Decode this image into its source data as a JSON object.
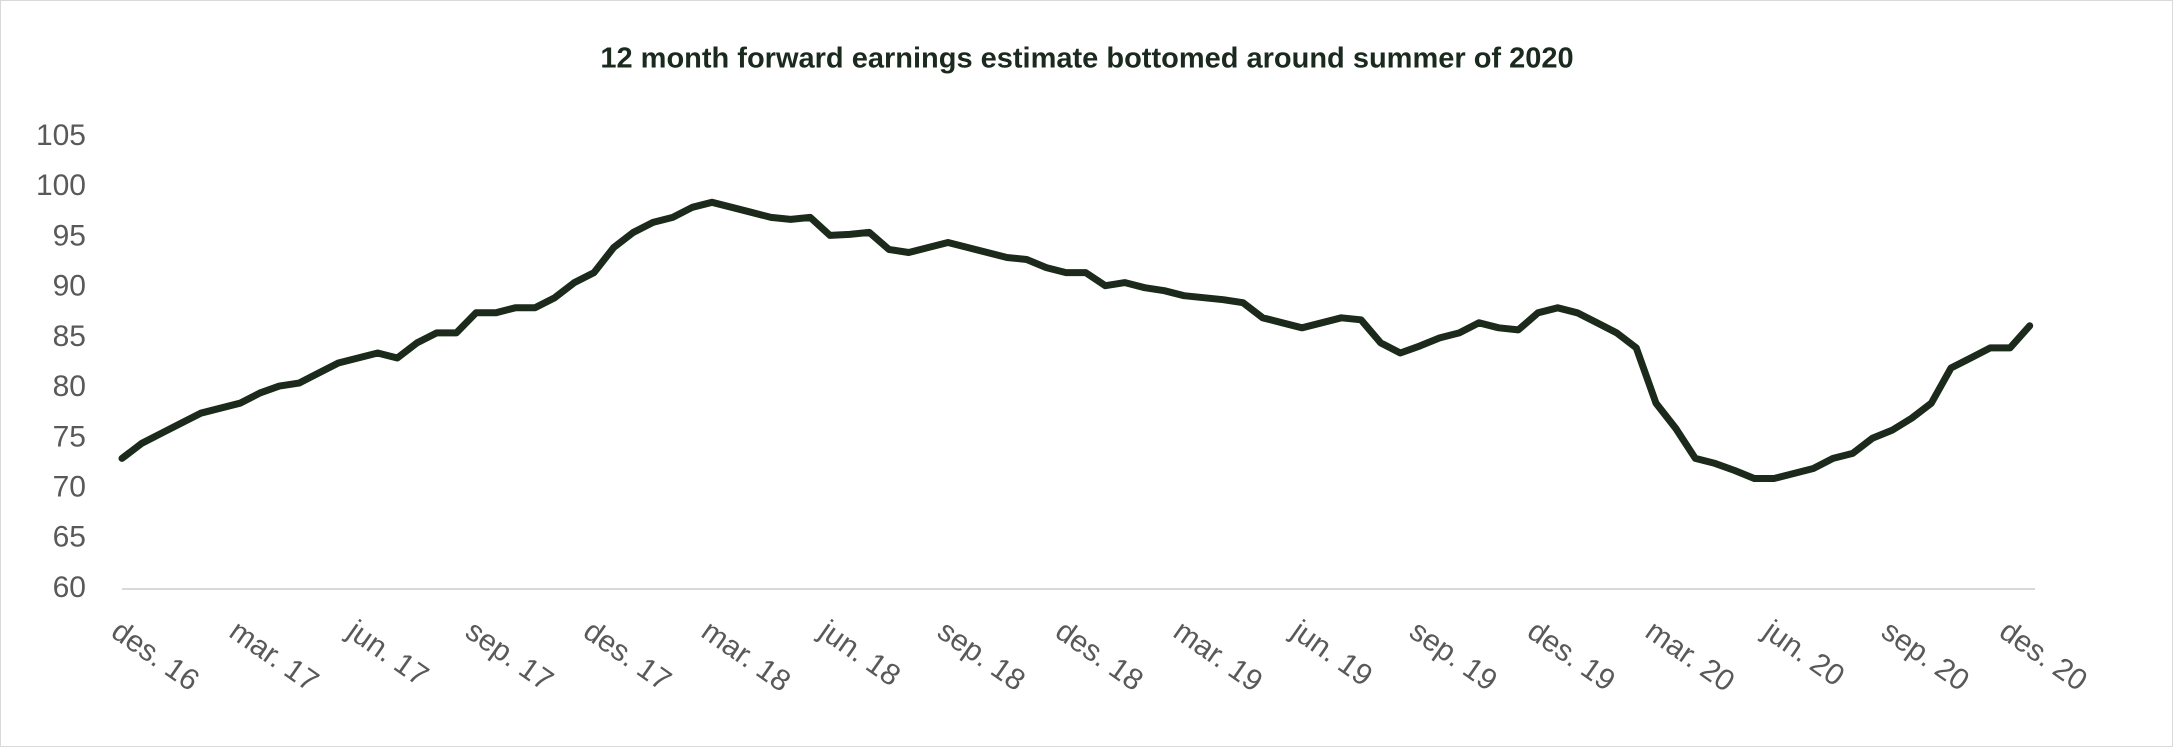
{
  "chart_data": {
    "type": "line",
    "title": "12 month forward earnings estimate bottomed around summer of 2020",
    "categories": [
      "des. 16",
      null,
      null,
      null,
      null,
      null,
      "mar. 17",
      null,
      null,
      null,
      null,
      null,
      "jun. 17",
      null,
      null,
      null,
      null,
      null,
      "sep. 17",
      null,
      null,
      null,
      null,
      null,
      "des. 17",
      null,
      null,
      null,
      null,
      null,
      "mar. 18",
      null,
      null,
      null,
      null,
      null,
      "jun. 18",
      null,
      null,
      null,
      null,
      null,
      "sep. 18",
      null,
      null,
      null,
      null,
      null,
      "des. 18",
      null,
      null,
      null,
      null,
      null,
      "mar. 19",
      null,
      null,
      null,
      null,
      null,
      "jun. 19",
      null,
      null,
      null,
      null,
      null,
      "sep. 19",
      null,
      null,
      null,
      null,
      null,
      "des. 19",
      null,
      null,
      null,
      null,
      null,
      "mar. 20",
      null,
      null,
      null,
      null,
      null,
      "jun. 20",
      null,
      null,
      null,
      null,
      null,
      "sep. 20",
      null,
      null,
      null,
      null,
      null,
      "des. 20",
      null
    ],
    "series": [
      {
        "name": "12 month forward earnings estimate",
        "color": "#1b2a1b",
        "values": [
          73,
          74.5,
          75.5,
          76.5,
          77.5,
          78,
          78.5,
          79.5,
          80.2,
          80.5,
          81.5,
          82.5,
          83,
          83.5,
          83,
          84.5,
          85.5,
          85.5,
          87.5,
          87.5,
          88,
          88,
          89,
          90.5,
          91.5,
          94,
          95.5,
          96.5,
          97,
          98,
          98.5,
          98,
          97.5,
          97,
          96.8,
          97,
          95.2,
          95.3,
          95.5,
          93.8,
          93.5,
          94,
          94.5,
          94,
          93.5,
          93,
          92.8,
          92,
          91.5,
          91.5,
          90.2,
          90.5,
          90,
          89.7,
          89.2,
          89,
          88.8,
          88.5,
          87,
          86.5,
          86,
          86.5,
          87,
          86.8,
          84.5,
          83.5,
          84.2,
          85,
          85.5,
          86.5,
          86,
          85.8,
          87.5,
          88,
          87.5,
          86.5,
          85.5,
          84,
          78.5,
          76,
          73,
          72.5,
          71.8,
          71,
          71,
          71.5,
          72,
          73,
          73.5,
          75,
          75.8,
          77,
          78.5,
          82,
          83,
          84,
          84,
          86.2
        ]
      }
    ],
    "ylim": [
      60,
      105
    ],
    "yticks": [
      60,
      65,
      70,
      75,
      80,
      85,
      90,
      95,
      100,
      105
    ],
    "grid": false
  }
}
